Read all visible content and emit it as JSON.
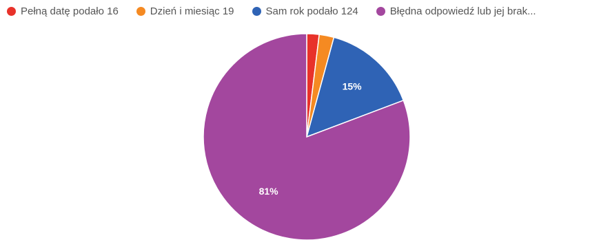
{
  "chart_data": {
    "type": "pie",
    "legend_position": "top",
    "slices": [
      {
        "name": "Pełną datę podało 16",
        "value": 16,
        "color": "#e8322a",
        "label": ""
      },
      {
        "name": "Dzień i miesiąc 19",
        "value": 19,
        "color": "#f58a22",
        "label": ""
      },
      {
        "name": "Sam rok podało 124",
        "value": 124,
        "color": "#2f63b5",
        "label": "15%"
      },
      {
        "name": "Błędna odpowiedź lub jej brak...",
        "value": 667,
        "color": "#a3479e",
        "label": "81%"
      }
    ]
  }
}
